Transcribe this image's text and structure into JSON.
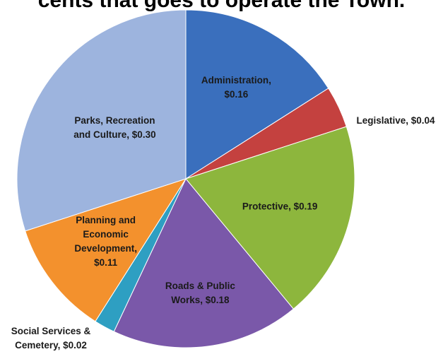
{
  "chart_data": {
    "type": "pie",
    "title": "cents that goes to operate the Town.",
    "slices": [
      {
        "label": "Administration, $0.16",
        "lines": [
          "Administration,",
          "$0.16"
        ],
        "value": 0.16,
        "color": "#3a6fbd",
        "placement": "inside"
      },
      {
        "label": "Legislative, $0.04",
        "lines": [
          "Legislative,  $0.04"
        ],
        "value": 0.04,
        "color": "#c4413f",
        "placement": "outside"
      },
      {
        "label": "Protective, $0.19",
        "lines": [
          "Protective,  $0.19"
        ],
        "value": 0.19,
        "color": "#8db63d",
        "placement": "inside"
      },
      {
        "label": "Roads & Public Works, $0.18",
        "lines": [
          "Roads & Public",
          "Works,  $0.18"
        ],
        "value": 0.18,
        "color": "#7a58a9",
        "placement": "inside"
      },
      {
        "label": "Social Services & Cemetery, $0.02",
        "lines": [
          "Social Services &",
          "Cemetery,  $0.02"
        ],
        "value": 0.02,
        "color": "#2e9fc2",
        "placement": "outside"
      },
      {
        "label": "Planning and Economic Development, $0.11",
        "lines": [
          "Planning and",
          "Economic",
          "Development,",
          "$0.11"
        ],
        "value": 0.11,
        "color": "#f3912d",
        "placement": "inside"
      },
      {
        "label": "Parks, Recreation and Culture, $0.30",
        "lines": [
          "Parks, Recreation",
          "and Culture,  $0.30"
        ],
        "value": 0.3,
        "color": "#9db4de",
        "placement": "inside"
      }
    ]
  }
}
